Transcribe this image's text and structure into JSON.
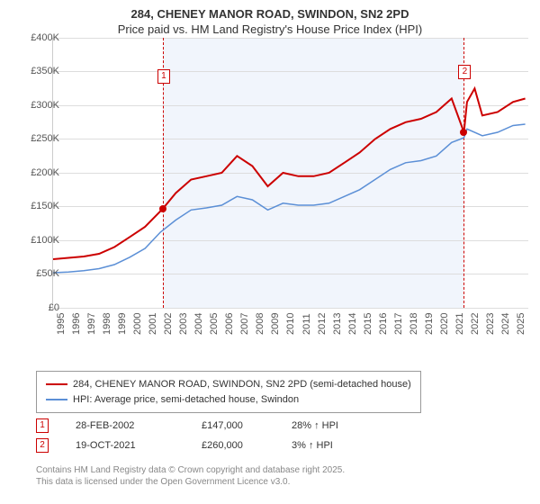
{
  "title_line1": "284, CHENEY MANOR ROAD, SWINDON, SN2 2PD",
  "title_line2": "Price paid vs. HM Land Registry's House Price Index (HPI)",
  "chart": {
    "type": "line",
    "x_start": 1995,
    "x_end": 2026,
    "y_min": 0,
    "y_max": 400000,
    "ytick_step": 50000,
    "yticks": [
      "£0",
      "£50K",
      "£100K",
      "£150K",
      "£200K",
      "£250K",
      "£300K",
      "£350K",
      "£400K"
    ],
    "xticks": [
      1995,
      1996,
      1997,
      1998,
      1999,
      2000,
      2001,
      2002,
      2003,
      2004,
      2005,
      2006,
      2007,
      2008,
      2009,
      2010,
      2011,
      2012,
      2013,
      2014,
      2015,
      2016,
      2017,
      2018,
      2019,
      2020,
      2021,
      2022,
      2023,
      2024,
      2025
    ],
    "grid_color": "#dddddd",
    "background_color": "#ffffff",
    "shaded_bg_color": "#eef3fb",
    "shaded_from": 2002.16,
    "shaded_to": 2021.8,
    "price_paid": {
      "color": "#cc0000",
      "width": 2,
      "label": "284, CHENEY MANOR ROAD, SWINDON, SN2 2PD (semi-detached house)",
      "points": [
        [
          1995,
          72000
        ],
        [
          1996,
          74000
        ],
        [
          1997,
          76000
        ],
        [
          1998,
          80000
        ],
        [
          1999,
          90000
        ],
        [
          2000,
          105000
        ],
        [
          2001,
          120000
        ],
        [
          2002.16,
          147000
        ],
        [
          2003,
          170000
        ],
        [
          2004,
          190000
        ],
        [
          2005,
          195000
        ],
        [
          2006,
          200000
        ],
        [
          2007,
          225000
        ],
        [
          2008,
          210000
        ],
        [
          2009,
          180000
        ],
        [
          2010,
          200000
        ],
        [
          2011,
          195000
        ],
        [
          2012,
          195000
        ],
        [
          2013,
          200000
        ],
        [
          2014,
          215000
        ],
        [
          2015,
          230000
        ],
        [
          2016,
          250000
        ],
        [
          2017,
          265000
        ],
        [
          2018,
          275000
        ],
        [
          2019,
          280000
        ],
        [
          2020,
          290000
        ],
        [
          2021,
          310000
        ],
        [
          2021.8,
          260000
        ],
        [
          2022,
          305000
        ],
        [
          2022.5,
          325000
        ],
        [
          2023,
          285000
        ],
        [
          2024,
          290000
        ],
        [
          2025,
          305000
        ],
        [
          2025.8,
          310000
        ]
      ]
    },
    "hpi": {
      "color": "#5b8fd6",
      "width": 1.5,
      "label": "HPI: Average price, semi-detached house, Swindon",
      "points": [
        [
          1995,
          52000
        ],
        [
          1996,
          53000
        ],
        [
          1997,
          55000
        ],
        [
          1998,
          58000
        ],
        [
          1999,
          64000
        ],
        [
          2000,
          75000
        ],
        [
          2001,
          88000
        ],
        [
          2002,
          112000
        ],
        [
          2003,
          130000
        ],
        [
          2004,
          145000
        ],
        [
          2005,
          148000
        ],
        [
          2006,
          152000
        ],
        [
          2007,
          165000
        ],
        [
          2008,
          160000
        ],
        [
          2009,
          145000
        ],
        [
          2010,
          155000
        ],
        [
          2011,
          152000
        ],
        [
          2012,
          152000
        ],
        [
          2013,
          155000
        ],
        [
          2014,
          165000
        ],
        [
          2015,
          175000
        ],
        [
          2016,
          190000
        ],
        [
          2017,
          205000
        ],
        [
          2018,
          215000
        ],
        [
          2019,
          218000
        ],
        [
          2020,
          225000
        ],
        [
          2021,
          245000
        ],
        [
          2021.8,
          252000
        ],
        [
          2022,
          265000
        ],
        [
          2023,
          255000
        ],
        [
          2024,
          260000
        ],
        [
          2025,
          270000
        ],
        [
          2025.8,
          272000
        ]
      ]
    },
    "sale_markers": [
      {
        "n": "1",
        "x": 2002.16,
        "y": 147000,
        "box_top": 35
      },
      {
        "n": "2",
        "x": 2021.8,
        "y": 260000,
        "box_top": 30
      }
    ]
  },
  "legend": {
    "border_color": "#999999"
  },
  "sales": [
    {
      "n": "1",
      "date": "28-FEB-2002",
      "price": "£147,000",
      "diff": "28% ↑ HPI"
    },
    {
      "n": "2",
      "date": "19-OCT-2021",
      "price": "£260,000",
      "diff": "3% ↑ HPI"
    }
  ],
  "attribution": {
    "line1": "Contains HM Land Registry data © Crown copyright and database right 2025.",
    "line2": "This data is licensed under the Open Government Licence v3.0."
  }
}
